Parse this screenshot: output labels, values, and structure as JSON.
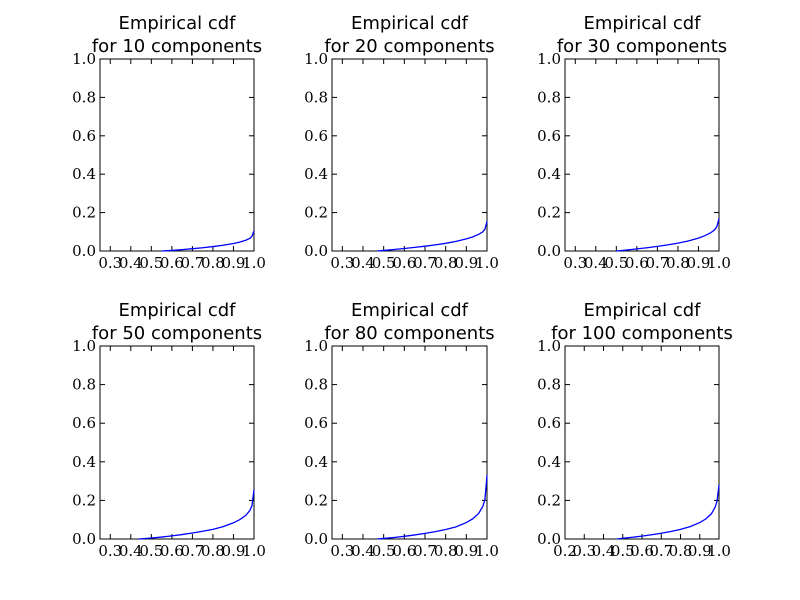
{
  "chart_data": [
    {
      "type": "line",
      "title": "Empirical cdf\nfor 10 components",
      "xlim": [
        0.25,
        1.0
      ],
      "ylim": [
        0.0,
        1.0
      ],
      "xticks": [
        "0.3",
        "0.4",
        "0.5",
        "0.6",
        "0.7",
        "0.8",
        "0.9",
        "1.0"
      ],
      "xtick_values": [
        0.3,
        0.4,
        0.5,
        0.6,
        0.7,
        0.8,
        0.9,
        1.0
      ],
      "yticks": [
        "0.0",
        "0.2",
        "0.4",
        "0.6",
        "0.8",
        "1.0"
      ],
      "ytick_values": [
        0.0,
        0.2,
        0.4,
        0.6,
        0.8,
        1.0
      ],
      "grid": false,
      "series": [
        {
          "color": "#0000ff",
          "x": [
            0.55,
            0.6,
            0.65,
            0.7,
            0.75,
            0.8,
            0.85,
            0.9,
            0.93,
            0.96,
            0.98,
            0.99,
            1.0
          ],
          "y": [
            0.0,
            0.003,
            0.007,
            0.012,
            0.017,
            0.023,
            0.03,
            0.039,
            0.046,
            0.056,
            0.066,
            0.076,
            0.105
          ]
        }
      ]
    },
    {
      "type": "line",
      "title": "Empirical cdf\nfor 20 components",
      "xlim": [
        0.25,
        1.0
      ],
      "ylim": [
        0.0,
        1.0
      ],
      "xticks": [
        "0.3",
        "0.4",
        "0.5",
        "0.6",
        "0.7",
        "0.8",
        "0.9",
        "1.0"
      ],
      "xtick_values": [
        0.3,
        0.4,
        0.5,
        0.6,
        0.7,
        0.8,
        0.9,
        1.0
      ],
      "yticks": [
        "0.0",
        "0.2",
        "0.4",
        "0.6",
        "0.8",
        "1.0"
      ],
      "ytick_values": [
        0.0,
        0.2,
        0.4,
        0.6,
        0.8,
        1.0
      ],
      "grid": false,
      "series": [
        {
          "color": "#0000ff",
          "x": [
            0.47,
            0.5,
            0.55,
            0.6,
            0.65,
            0.7,
            0.75,
            0.8,
            0.85,
            0.9,
            0.93,
            0.96,
            0.98,
            0.99,
            1.0
          ],
          "y": [
            0.0,
            0.003,
            0.008,
            0.013,
            0.019,
            0.025,
            0.032,
            0.04,
            0.05,
            0.063,
            0.073,
            0.087,
            0.1,
            0.113,
            0.155
          ]
        }
      ]
    },
    {
      "type": "line",
      "title": "Empirical cdf\nfor 30 components",
      "xlim": [
        0.25,
        1.0
      ],
      "ylim": [
        0.0,
        1.0
      ],
      "xticks": [
        "0.3",
        "0.4",
        "0.5",
        "0.6",
        "0.7",
        "0.8",
        "0.9",
        "1.0"
      ],
      "xtick_values": [
        0.3,
        0.4,
        0.5,
        0.6,
        0.7,
        0.8,
        0.9,
        1.0
      ],
      "yticks": [
        "0.0",
        "0.2",
        "0.4",
        "0.6",
        "0.8",
        "1.0"
      ],
      "ytick_values": [
        0.0,
        0.2,
        0.4,
        0.6,
        0.8,
        1.0
      ],
      "grid": false,
      "series": [
        {
          "color": "#0000ff",
          "x": [
            0.5,
            0.55,
            0.6,
            0.65,
            0.7,
            0.75,
            0.8,
            0.85,
            0.9,
            0.93,
            0.96,
            0.98,
            0.99,
            1.0
          ],
          "y": [
            0.0,
            0.005,
            0.011,
            0.017,
            0.024,
            0.032,
            0.041,
            0.052,
            0.067,
            0.079,
            0.095,
            0.112,
            0.128,
            0.17
          ]
        }
      ]
    },
    {
      "type": "line",
      "title": "Empirical cdf\nfor 50 components",
      "xlim": [
        0.25,
        1.0
      ],
      "ylim": [
        0.0,
        1.0
      ],
      "xticks": [
        "0.3",
        "0.4",
        "0.5",
        "0.6",
        "0.7",
        "0.8",
        "0.9",
        "1.0"
      ],
      "xtick_values": [
        0.3,
        0.4,
        0.5,
        0.6,
        0.7,
        0.8,
        0.9,
        1.0
      ],
      "yticks": [
        "0.0",
        "0.2",
        "0.4",
        "0.6",
        "0.8",
        "1.0"
      ],
      "ytick_values": [
        0.0,
        0.2,
        0.4,
        0.6,
        0.8,
        1.0
      ],
      "grid": false,
      "series": [
        {
          "color": "#0000ff",
          "x": [
            0.44,
            0.5,
            0.55,
            0.6,
            0.65,
            0.7,
            0.75,
            0.8,
            0.85,
            0.9,
            0.93,
            0.96,
            0.98,
            0.99,
            1.0
          ],
          "y": [
            0.0,
            0.005,
            0.01,
            0.016,
            0.023,
            0.031,
            0.04,
            0.05,
            0.064,
            0.084,
            0.1,
            0.122,
            0.148,
            0.172,
            0.255
          ]
        }
      ]
    },
    {
      "type": "line",
      "title": "Empirical cdf\nfor 80 components",
      "xlim": [
        0.25,
        1.0
      ],
      "ylim": [
        0.0,
        1.0
      ],
      "xticks": [
        "0.3",
        "0.4",
        "0.5",
        "0.6",
        "0.7",
        "0.8",
        "0.9",
        "1.0"
      ],
      "xtick_values": [
        0.3,
        0.4,
        0.5,
        0.6,
        0.7,
        0.8,
        0.9,
        1.0
      ],
      "yticks": [
        "0.0",
        "0.2",
        "0.4",
        "0.6",
        "0.8",
        "1.0"
      ],
      "ytick_values": [
        0.0,
        0.2,
        0.4,
        0.6,
        0.8,
        1.0
      ],
      "grid": false,
      "series": [
        {
          "color": "#0000ff",
          "x": [
            0.47,
            0.5,
            0.55,
            0.6,
            0.65,
            0.7,
            0.75,
            0.8,
            0.85,
            0.9,
            0.93,
            0.96,
            0.98,
            0.99,
            1.0
          ],
          "y": [
            0.0,
            0.003,
            0.008,
            0.014,
            0.021,
            0.029,
            0.038,
            0.049,
            0.063,
            0.085,
            0.104,
            0.133,
            0.17,
            0.205,
            0.33
          ]
        }
      ]
    },
    {
      "type": "line",
      "title": "Empirical cdf\nfor 100 components",
      "xlim": [
        0.2,
        1.0
      ],
      "ylim": [
        0.0,
        1.0
      ],
      "xticks": [
        "0.2",
        "0.3",
        "0.4",
        "0.5",
        "0.6",
        "0.7",
        "0.8",
        "0.9",
        "1.0"
      ],
      "xtick_values": [
        0.2,
        0.3,
        0.4,
        0.5,
        0.6,
        0.7,
        0.8,
        0.9,
        1.0
      ],
      "yticks": [
        "0.0",
        "0.2",
        "0.4",
        "0.6",
        "0.8",
        "1.0"
      ],
      "ytick_values": [
        0.0,
        0.2,
        0.4,
        0.6,
        0.8,
        1.0
      ],
      "grid": false,
      "series": [
        {
          "color": "#0000ff",
          "x": [
            0.47,
            0.5,
            0.55,
            0.6,
            0.65,
            0.7,
            0.75,
            0.8,
            0.85,
            0.9,
            0.93,
            0.96,
            0.98,
            0.99,
            1.0
          ],
          "y": [
            0.0,
            0.004,
            0.009,
            0.015,
            0.022,
            0.03,
            0.039,
            0.05,
            0.064,
            0.085,
            0.103,
            0.13,
            0.165,
            0.197,
            0.28
          ]
        }
      ]
    }
  ]
}
